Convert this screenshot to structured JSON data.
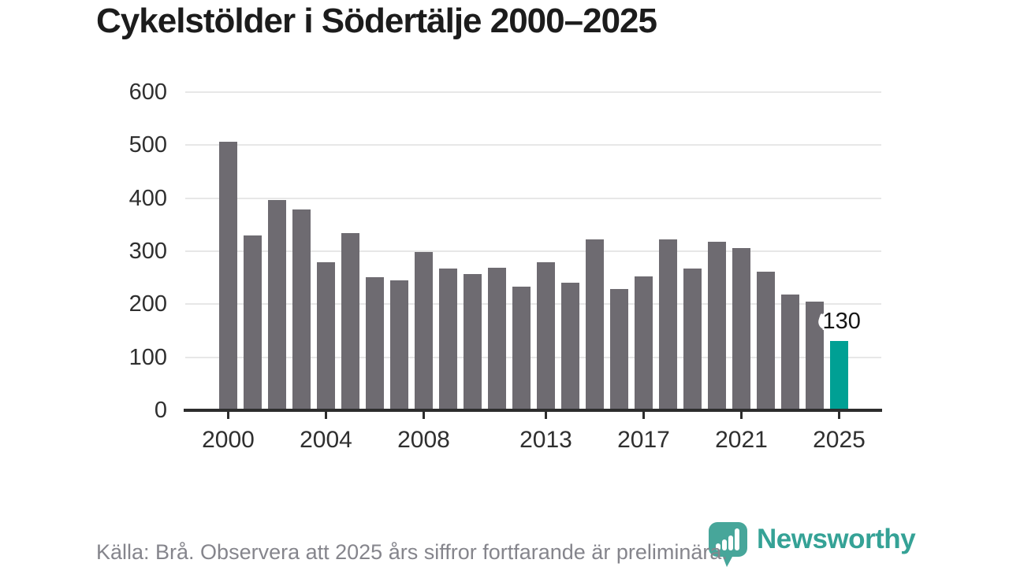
{
  "chart_data": {
    "type": "bar",
    "title": "Cykelstölder i Södertälje 2000–2025",
    "categories": [
      2000,
      2001,
      2002,
      2003,
      2004,
      2005,
      2006,
      2007,
      2008,
      2009,
      2010,
      2011,
      2012,
      2013,
      2014,
      2015,
      2016,
      2017,
      2018,
      2019,
      2020,
      2021,
      2022,
      2023,
      2024,
      2025
    ],
    "values": [
      507,
      330,
      396,
      379,
      279,
      334,
      251,
      245,
      299,
      267,
      257,
      269,
      233,
      279,
      240,
      322,
      229,
      252,
      322,
      268,
      318,
      306,
      262,
      218,
      205,
      130
    ],
    "ylim": [
      0,
      600
    ],
    "y_ticks": [
      0,
      100,
      200,
      300,
      400,
      500,
      600
    ],
    "x_tick_years": [
      2000,
      2004,
      2008,
      2013,
      2017,
      2021,
      2025
    ],
    "grid": "horizontal",
    "legend": "none",
    "bar_color": "#6e6b71",
    "highlight_year": 2025,
    "highlight_color": "#00a094",
    "annotation": {
      "text": "130",
      "year": 2025
    }
  },
  "footer": {
    "source_text": "Källa: Brå. Observera att 2025 års siffror fortfarande är preliminära.",
    "logo_text": "Newsworthy",
    "logo_color": "#3fa296"
  }
}
